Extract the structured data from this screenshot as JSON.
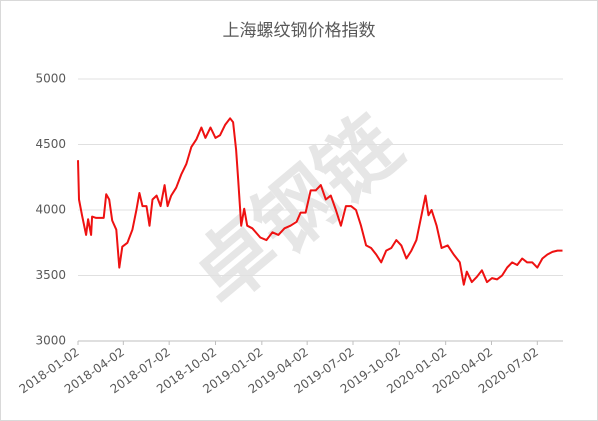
{
  "chart_data": {
    "type": "line",
    "title": "上海螺纹钢价格指数",
    "watermark": "卓钢链",
    "x": [
      "2018-01-02",
      "2018-01-04",
      "2018-01-10",
      "2018-01-18",
      "2018-01-22",
      "2018-01-28",
      "2018-01-30",
      "2018-02-07",
      "2018-02-22",
      "2018-02-27",
      "2018-03-05",
      "2018-03-11",
      "2018-03-19",
      "2018-03-25",
      "2018-03-31",
      "2018-04-10",
      "2018-04-20",
      "2018-04-28",
      "2018-05-04",
      "2018-05-10",
      "2018-05-18",
      "2018-05-24",
      "2018-05-30",
      "2018-06-07",
      "2018-06-15",
      "2018-06-23",
      "2018-06-29",
      "2018-07-06",
      "2018-07-16",
      "2018-07-26",
      "2018-08-05",
      "2018-08-15",
      "2018-08-25",
      "2018-09-04",
      "2018-09-12",
      "2018-09-22",
      "2018-10-02",
      "2018-10-11",
      "2018-10-21",
      "2018-10-31",
      "2018-11-06",
      "2018-11-12",
      "2018-11-16",
      "2018-11-22",
      "2018-11-28",
      "2018-12-04",
      "2018-12-14",
      "2018-12-30",
      "2019-01-11",
      "2019-01-23",
      "2019-02-04",
      "2019-02-16",
      "2019-02-28",
      "2019-03-12",
      "2019-03-20",
      "2019-03-30",
      "2019-04-09",
      "2019-04-19",
      "2019-04-29",
      "2019-05-09",
      "2019-05-19",
      "2019-05-29",
      "2019-06-08",
      "2019-06-18",
      "2019-06-28",
      "2019-07-08",
      "2019-07-18",
      "2019-07-28",
      "2019-08-07",
      "2019-08-17",
      "2019-08-27",
      "2019-09-06",
      "2019-09-16",
      "2019-09-26",
      "2019-10-06",
      "2019-10-16",
      "2019-10-26",
      "2019-11-05",
      "2019-11-15",
      "2019-11-23",
      "2019-11-29",
      "2019-12-05",
      "2019-12-15",
      "2019-12-25",
      "2020-01-06",
      "2020-01-18",
      "2020-01-30",
      "2020-02-07",
      "2020-02-13",
      "2020-02-23",
      "2020-03-04",
      "2020-03-14",
      "2020-03-24",
      "2020-04-03",
      "2020-04-13",
      "2020-04-23",
      "2020-05-03",
      "2020-05-13",
      "2020-05-23",
      "2020-06-02",
      "2020-06-12",
      "2020-06-22",
      "2020-07-02",
      "2020-07-12",
      "2020-07-22",
      "2020-08-01",
      "2020-08-11",
      "2020-08-21"
    ],
    "series": [
      {
        "name": "上海螺纹钢价格指数",
        "color": "#ee1111",
        "values": [
          4380,
          4080,
          3960,
          3810,
          3930,
          3810,
          3950,
          3940,
          3940,
          4120,
          4080,
          3920,
          3850,
          3560,
          3720,
          3750,
          3850,
          4000,
          4130,
          4030,
          4030,
          3880,
          4080,
          4110,
          4030,
          4190,
          4030,
          4110,
          4170,
          4270,
          4350,
          4480,
          4540,
          4630,
          4550,
          4630,
          4550,
          4570,
          4650,
          4700,
          4670,
          4460,
          4230,
          3880,
          4010,
          3880,
          3860,
          3790,
          3770,
          3830,
          3810,
          3860,
          3880,
          3910,
          3980,
          3980,
          4150,
          4150,
          4190,
          4080,
          4110,
          4000,
          3880,
          4030,
          4030,
          4000,
          3880,
          3730,
          3710,
          3660,
          3600,
          3690,
          3710,
          3770,
          3730,
          3630,
          3690,
          3770,
          3960,
          4110,
          3960,
          4000,
          3880,
          3710,
          3730,
          3660,
          3600,
          3430,
          3530,
          3450,
          3490,
          3540,
          3450,
          3480,
          3470,
          3500,
          3560,
          3600,
          3580,
          3630,
          3600,
          3600,
          3560,
          3630,
          3660,
          3680,
          3690,
          3690
        ]
      }
    ],
    "xlim": [
      "2018-01-02",
      "2020-08-22"
    ],
    "xticks": [
      "2018-01-02",
      "2018-04-02",
      "2018-07-02",
      "2018-10-02",
      "2019-01-02",
      "2019-04-02",
      "2019-07-02",
      "2019-10-02",
      "2020-01-02",
      "2020-04-02",
      "2020-07-02"
    ],
    "ylim": [
      3000,
      5000
    ],
    "yticks": [
      3000,
      3500,
      4000,
      4500,
      5000
    ],
    "grid": true
  }
}
